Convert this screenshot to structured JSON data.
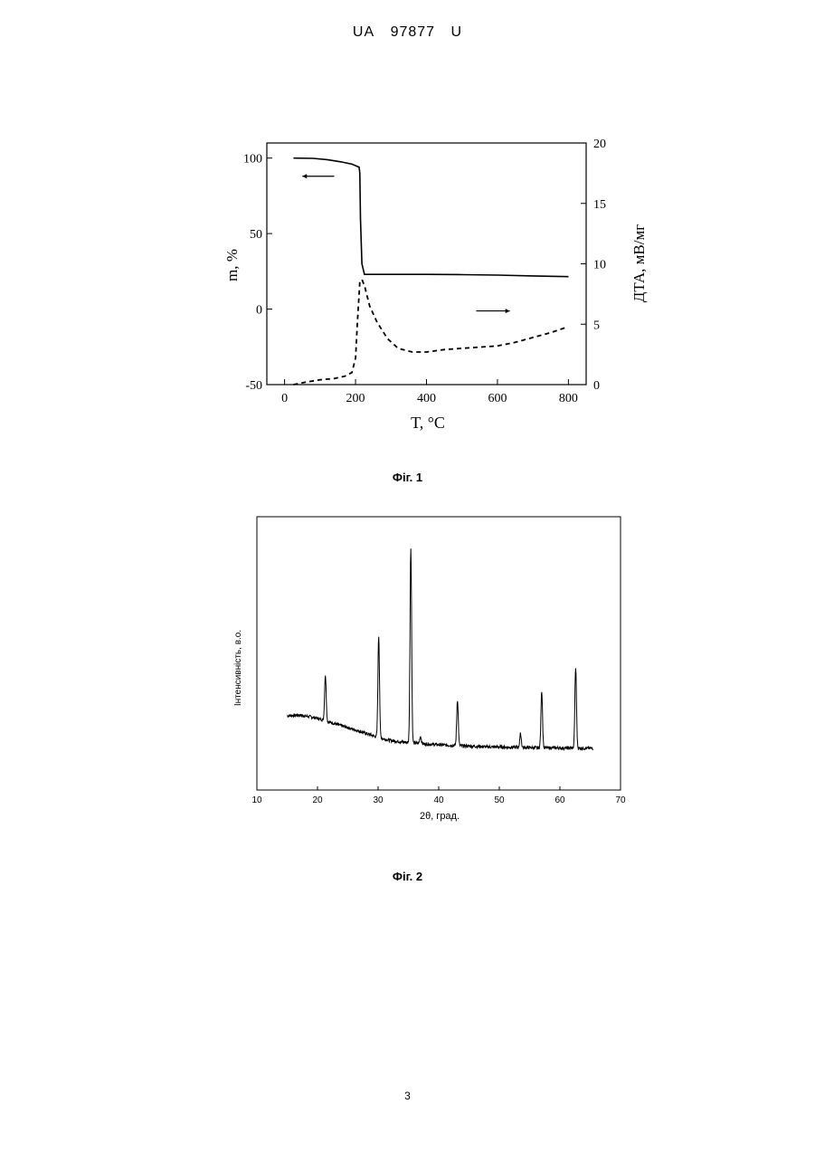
{
  "header": {
    "code_prefix": "UA",
    "number": "97877",
    "suffix": "U"
  },
  "figures": [
    {
      "caption": "Фіг. 1"
    },
    {
      "caption": "Фіг. 2"
    }
  ],
  "page_number": "3",
  "chart_data": [
    {
      "type": "line",
      "xlabel": "T, °C",
      "ylabel": "m, %",
      "y2label": "ДТА, мВ/мг",
      "xlim": [
        -50,
        850
      ],
      "ylim": [
        -50,
        110
      ],
      "y2lim": [
        0,
        20
      ],
      "xticks": [
        "0",
        "200",
        "400",
        "600",
        "800"
      ],
      "yticks": [
        "-50",
        "0",
        "50",
        "100"
      ],
      "y2ticks": [
        "0",
        "5",
        "10",
        "15",
        "20"
      ],
      "grid": false,
      "series": [
        {
          "axis": "left",
          "style": "solid",
          "x": [
            25,
            80,
            120,
            160,
            190,
            210,
            212,
            214,
            218,
            225,
            300,
            400,
            500,
            600,
            700,
            800
          ],
          "y": [
            100,
            99.8,
            99,
            97.5,
            96,
            94,
            90,
            60,
            30,
            23,
            23,
            23,
            22.8,
            22.5,
            22,
            21.5
          ]
        },
        {
          "axis": "right",
          "style": "dashed",
          "x": [
            25,
            60,
            100,
            140,
            170,
            190,
            200,
            205,
            212,
            218,
            225,
            240,
            260,
            290,
            320,
            360,
            400,
            450,
            500,
            550,
            600,
            650,
            700,
            750,
            790
          ],
          "y": [
            0,
            0.2,
            0.4,
            0.5,
            0.7,
            1.0,
            2.2,
            5,
            8.5,
            8.7,
            8.2,
            6.5,
            5.2,
            3.8,
            3.0,
            2.7,
            2.7,
            2.9,
            3.0,
            3.1,
            3.2,
            3.5,
            3.9,
            4.3,
            4.7
          ]
        }
      ],
      "annotations": [
        {
          "type": "arrow",
          "direction": "left",
          "x_from": 140,
          "x_to": 50,
          "y_data": 88,
          "axis": "left"
        },
        {
          "type": "arrow",
          "direction": "right",
          "x_from": 540,
          "x_to": 635,
          "y_data": 6.1,
          "axis": "right"
        }
      ]
    },
    {
      "type": "line",
      "xlabel": "2θ, град.",
      "ylabel": "Інтенсивність, в.о.",
      "xlim": [
        10,
        70
      ],
      "ylim": [
        0,
        100
      ],
      "xticks": [
        "10",
        "20",
        "30",
        "40",
        "50",
        "60",
        "70"
      ],
      "grid": false,
      "baseline": {
        "x": [
          15,
          17,
          19,
          20.5,
          22,
          24,
          26,
          28,
          30,
          32,
          34,
          36,
          38,
          40,
          44,
          48,
          52,
          56,
          60,
          64,
          65.5
        ],
        "y": [
          27,
          27.3,
          26.5,
          25.5,
          24.2,
          22.6,
          21,
          19.3,
          17.5,
          16.2,
          15.5,
          15,
          14.6,
          14.3,
          13.8,
          13.4,
          13.2,
          13,
          12.9,
          12.8,
          12.7
        ]
      },
      "peaks": [
        {
          "x": 21.3,
          "height": 45
        },
        {
          "x": 30.1,
          "height": 62
        },
        {
          "x": 35.4,
          "height": 100
        },
        {
          "x": 37.0,
          "height": 18
        },
        {
          "x": 43.1,
          "height": 34
        },
        {
          "x": 53.5,
          "height": 19
        },
        {
          "x": 57.0,
          "height": 38
        },
        {
          "x": 62.6,
          "height": 48
        }
      ]
    }
  ]
}
